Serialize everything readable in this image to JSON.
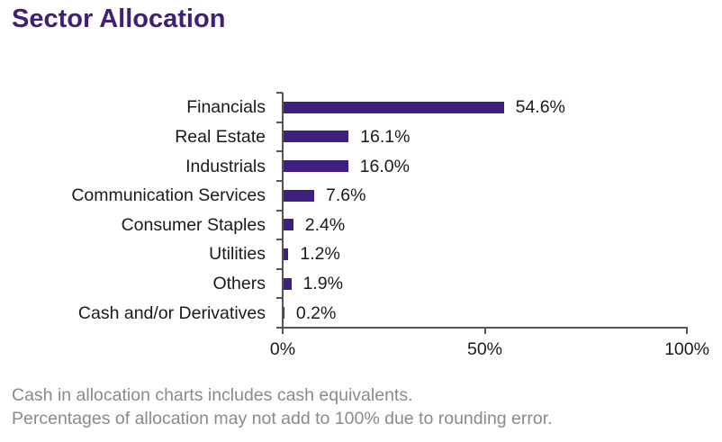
{
  "title": "Sector Allocation",
  "chart_data": {
    "type": "bar",
    "orientation": "horizontal",
    "title": "Sector Allocation",
    "categories": [
      "Financials",
      "Real Estate",
      "Industrials",
      "Communication Services",
      "Consumer Staples",
      "Utilities",
      "Others",
      "Cash and/or Derivatives"
    ],
    "values": [
      54.6,
      16.1,
      16.0,
      7.6,
      2.4,
      1.2,
      1.9,
      0.2
    ],
    "value_labels": [
      "54.6%",
      "16.1%",
      "16.0%",
      "7.6%",
      "2.4%",
      "1.2%",
      "1.9%",
      "0.2%"
    ],
    "xlabel": "",
    "ylabel": "",
    "xlim": [
      0,
      100
    ],
    "xticks": [
      "0%",
      "50%",
      "100%"
    ],
    "grid": false,
    "legend": "none",
    "bar_color": "#3f1f7f"
  },
  "footnotes": [
    "Cash in allocation charts includes cash equivalents.",
    "Percentages of allocation may not add to 100% due to rounding error."
  ]
}
